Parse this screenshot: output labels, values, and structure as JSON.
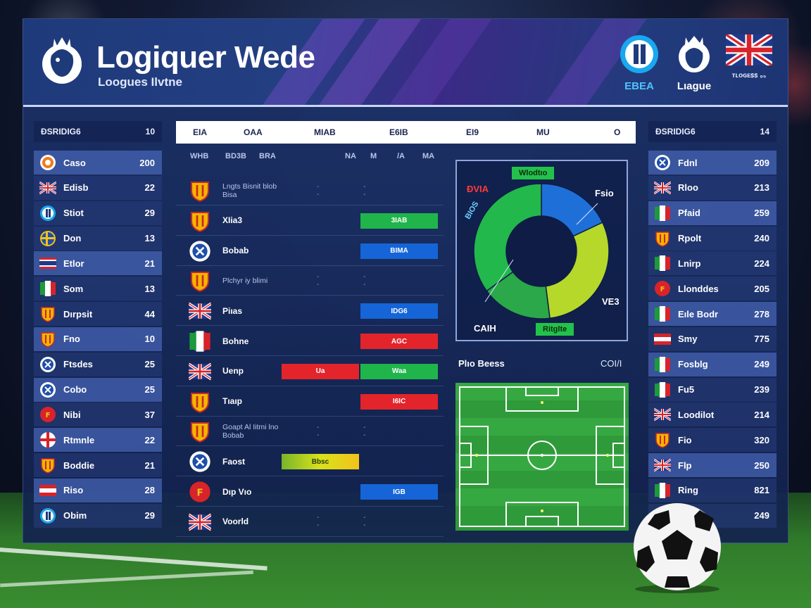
{
  "header": {
    "title": "Logiquer Wede",
    "subtitle": "Loogues Ilvtne",
    "brands": [
      {
        "label": "EBEA",
        "icon": "letter-badge-icon"
      },
      {
        "label": "Lıague",
        "icon": "lion-crest-icon"
      },
      {
        "label": "ᴛʟᴏɢᴇꜱꜱ ₉₅",
        "icon": "union-jack-flag-icon"
      }
    ]
  },
  "left_table": {
    "head_label": "ƉSRIDIG6",
    "head_value": "10",
    "rows": [
      {
        "name": "Caso",
        "value": "200",
        "flag": "orange-crest",
        "hl": true
      },
      {
        "name": "Edisb",
        "value": "22",
        "flag": "uk",
        "hl": false
      },
      {
        "name": "Stiot",
        "value": "29",
        "flag": "blue-badge",
        "hl": false
      },
      {
        "name": "Don",
        "value": "13",
        "flag": "sweden",
        "hl": false
      },
      {
        "name": "Etlor",
        "value": "21",
        "flag": "thailand",
        "hl": true
      },
      {
        "name": "Som",
        "value": "13",
        "flag": "italy",
        "hl": false
      },
      {
        "name": "Dırpsit",
        "value": "44",
        "flag": "yellow-shield",
        "hl": false
      },
      {
        "name": "Fno",
        "value": "10",
        "flag": "yellow-shield",
        "hl": true
      },
      {
        "name": "Ftsdes",
        "value": "25",
        "flag": "blue-crest",
        "hl": false
      },
      {
        "name": "Cobo",
        "value": "25",
        "flag": "blue-crest",
        "hl": true
      },
      {
        "name": "Nibi",
        "value": "37",
        "flag": "red-seal",
        "hl": false
      },
      {
        "name": "Rtmnle",
        "value": "22",
        "flag": "england",
        "hl": true
      },
      {
        "name": "Boddie",
        "value": "21",
        "flag": "yellow-shield",
        "hl": false
      },
      {
        "name": "Riso",
        "value": "28",
        "flag": "red-white",
        "hl": true
      },
      {
        "name": "Obim",
        "value": "29",
        "flag": "blue-badge",
        "hl": false
      }
    ]
  },
  "right_table": {
    "head_label": "ƉSRIDIG6",
    "head_value": "14",
    "rows": [
      {
        "name": "Fdnl",
        "value": "209",
        "flag": "blue-crest",
        "hl": true
      },
      {
        "name": "Rloo",
        "value": "213",
        "flag": "uk",
        "hl": false
      },
      {
        "name": "Pfaid",
        "value": "259",
        "flag": "italy",
        "hl": true
      },
      {
        "name": "Rpolt",
        "value": "240",
        "flag": "yellow-shield",
        "hl": false
      },
      {
        "name": "Lnirp",
        "value": "224",
        "flag": "italy",
        "hl": false
      },
      {
        "name": "Llonddes",
        "value": "205",
        "flag": "red-seal",
        "hl": false
      },
      {
        "name": "Eıle Bodr",
        "value": "278",
        "flag": "italy",
        "hl": true
      },
      {
        "name": "Smy",
        "value": "775",
        "flag": "red-white",
        "hl": false
      },
      {
        "name": "Fosblg",
        "value": "249",
        "flag": "italy",
        "hl": true
      },
      {
        "name": "Fu5",
        "value": "239",
        "flag": "italy",
        "hl": false
      },
      {
        "name": "Loodilot",
        "value": "214",
        "flag": "uk",
        "hl": false
      },
      {
        "name": "Fio",
        "value": "320",
        "flag": "yellow-shield",
        "hl": false
      },
      {
        "name": "Flp",
        "value": "250",
        "flag": "uk",
        "hl": true
      },
      {
        "name": "Ring",
        "value": "821",
        "flag": "italy",
        "hl": false
      },
      {
        "name": "",
        "value": "249",
        "flag": "none",
        "hl": false
      }
    ]
  },
  "center_table": {
    "columns": [
      "EIA",
      "OAA",
      "MIAB",
      "E6IB",
      "EI9",
      "MU",
      "O"
    ],
    "sub_columns": [
      "WHB",
      "BD3B",
      "BRA",
      "NA",
      "M",
      "/A",
      "MA"
    ],
    "rows": [
      {
        "name": "Lngts Bisnit blob Bisa",
        "small": true,
        "crest": "yellow-shield",
        "bar": null
      },
      {
        "name": "XIia3",
        "small": false,
        "crest": "yellow-shield",
        "bar": {
          "color": "green",
          "label": "3IAB",
          "col": "right"
        }
      },
      {
        "name": "Bobab",
        "small": false,
        "crest": "blue-crest",
        "bar": {
          "color": "blue",
          "label": "BIMA",
          "col": "right"
        }
      },
      {
        "name": "Plchyr iy blimi",
        "small": true,
        "crest": "yellow-shield",
        "bar": null
      },
      {
        "name": "Piıas",
        "small": false,
        "crest": "uk",
        "bar": {
          "color": "blue",
          "label": "IDG6",
          "col": "right"
        }
      },
      {
        "name": "Bohne",
        "small": false,
        "crest": "italy",
        "bar": {
          "color": "red",
          "label": "AGC",
          "col": "right"
        }
      },
      {
        "name": "Uenp",
        "small": false,
        "crest": "uk",
        "bar": {
          "color": "red",
          "label": "Ua",
          "col": "left"
        },
        "bar2": {
          "color": "green",
          "label": "Waa",
          "col": "right"
        }
      },
      {
        "name": "Tıaıp",
        "small": false,
        "crest": "yellow-shield",
        "bar": {
          "color": "red",
          "label": "I6IC",
          "col": "right"
        }
      },
      {
        "name": "Goapt Al Iitmi lno Bobab",
        "small": true,
        "crest": "yellow-shield",
        "bar": null
      },
      {
        "name": "Faost",
        "small": false,
        "crest": "blue-crest",
        "bar": {
          "color": "yellow",
          "label": "Bbsc",
          "col": "left-wide"
        }
      },
      {
        "name": "Dıp Vıo",
        "small": false,
        "crest": "red-seal",
        "bar": {
          "color": "blue",
          "label": "IGB",
          "col": "right"
        }
      },
      {
        "name": "Voorld",
        "small": false,
        "crest": "uk",
        "bar": null
      }
    ]
  },
  "donut": {
    "tag_top": "Wlodtıo",
    "tag_bottom": "Ritglte",
    "label_tl": "ƉVIA",
    "label_tr": "Fsio",
    "label_left": "BIOS",
    "label_br": "VE3",
    "label_bl": "CAIH",
    "segments": [
      {
        "value": 18,
        "color": "#1f6fd8"
      },
      {
        "value": 30,
        "color": "#b6d82a"
      },
      {
        "value": 17,
        "color": "#2aa84a"
      },
      {
        "value": 35,
        "color": "#22b84c"
      }
    ]
  },
  "pitch": {
    "title": "Plıo Beess",
    "code": "COI/I"
  }
}
